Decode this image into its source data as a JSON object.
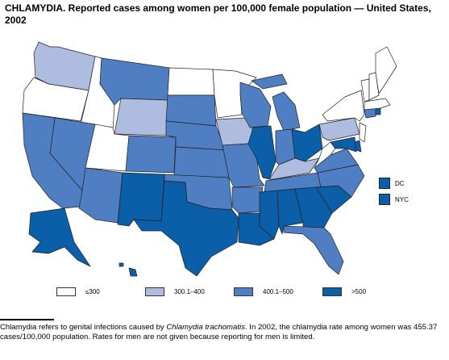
{
  "title": "CHLAMYDIA. Reported cases among women per 100,000 female population — United States, 2002",
  "colors": {
    "le300": "#ffffff",
    "c300_400": "#aebcdf",
    "c400_500": "#4f7fc2",
    "gt500": "#0b5ea8",
    "border": "#222222"
  },
  "legend": {
    "items": [
      {
        "label": "≤300",
        "color": "#ffffff"
      },
      {
        "label": "300.1–400",
        "color": "#aebcdf"
      },
      {
        "label": "400.1–500",
        "color": "#4f7fc2"
      },
      {
        "label": ">500",
        "color": "#0b5ea8"
      }
    ]
  },
  "inset": {
    "dc_label": "DC",
    "nyc_label": "NYC"
  },
  "footnote": {
    "part1": "Chlamydia refers to genital infections caused by ",
    "organism": "Chlamydia trachomatis",
    "part2": ". In 2002, the chlamydia rate among women was 455.37 cases/100,000 population. Rates for men are not given because reporting for men is limited."
  }
}
